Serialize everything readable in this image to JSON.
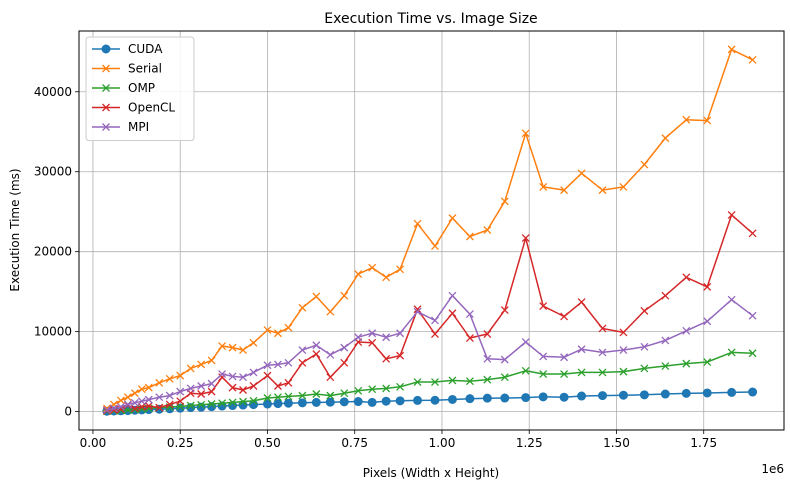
{
  "chart_data": {
    "type": "line",
    "title": "Execution Time vs. Image Size",
    "xlabel": "Pixels (Width x Height)",
    "ylabel": "Execution Time (ms)",
    "x_offset_label": "1e6",
    "xlim": [
      -40000,
      1980000
    ],
    "ylim": [
      -2300,
      47600
    ],
    "x_ticks": [
      0,
      250000,
      500000,
      750000,
      1000000,
      1250000,
      1500000,
      1750000
    ],
    "x_tick_labels": [
      "0.00",
      "0.25",
      "0.50",
      "0.75",
      "1.00",
      "1.25",
      "1.50",
      "1.75"
    ],
    "y_ticks": [
      0,
      10000,
      20000,
      30000,
      40000
    ],
    "y_tick_labels": [
      "0",
      "10000",
      "20000",
      "30000",
      "40000"
    ],
    "grid": true,
    "legend_position": "top-left",
    "x": [
      40000,
      60000,
      80000,
      100000,
      120000,
      140000,
      160000,
      190000,
      220000,
      250000,
      280000,
      310000,
      340000,
      370000,
      400000,
      430000,
      460000,
      500000,
      530000,
      560000,
      600000,
      640000,
      680000,
      720000,
      760000,
      800000,
      840000,
      880000,
      930000,
      980000,
      1030000,
      1080000,
      1130000,
      1180000,
      1240000,
      1290000,
      1350000,
      1400000,
      1460000,
      1520000,
      1580000,
      1640000,
      1700000,
      1760000,
      1830000,
      1890000
    ],
    "series": [
      {
        "name": "CUDA",
        "marker": "circle",
        "color": "#1f77b4",
        "values": [
          50,
          80,
          100,
          130,
          170,
          210,
          250,
          300,
          350,
          430,
          500,
          560,
          620,
          700,
          760,
          820,
          880,
          950,
          1000,
          1050,
          1100,
          1150,
          1180,
          1220,
          1260,
          1150,
          1300,
          1350,
          1400,
          1420,
          1520,
          1620,
          1680,
          1700,
          1750,
          1850,
          1800,
          1950,
          2000,
          2050,
          2100,
          2200,
          2280,
          2330,
          2400,
          2450
        ]
      },
      {
        "name": "Serial",
        "marker": "x",
        "color": "#ff7f0e",
        "values": [
          400,
          900,
          1400,
          1800,
          2300,
          2800,
          3000,
          3600,
          4100,
          4500,
          5400,
          5900,
          6400,
          8200,
          8000,
          7700,
          8600,
          10200,
          9800,
          10500,
          13000,
          14400,
          12500,
          14500,
          17200,
          18000,
          16800,
          17800,
          23500,
          20700,
          24200,
          21900,
          22700,
          26300,
          34800,
          28100,
          27700,
          29800,
          27700,
          28100,
          30900,
          34200,
          36500,
          36400,
          45300,
          44000
        ]
      },
      {
        "name": "OMP",
        "marker": "x",
        "color": "#2ca02c",
        "values": [
          60,
          100,
          150,
          200,
          250,
          320,
          400,
          480,
          560,
          650,
          750,
          850,
          950,
          1050,
          1150,
          1250,
          1350,
          1700,
          1800,
          1900,
          2000,
          2200,
          2000,
          2300,
          2600,
          2800,
          2900,
          3100,
          3700,
          3700,
          3900,
          3800,
          4000,
          4300,
          5100,
          4700,
          4700,
          4900,
          4900,
          5000,
          5400,
          5700,
          6000,
          6200,
          7400,
          7300
        ]
      },
      {
        "name": "OpenCL",
        "marker": "x",
        "color": "#d62728",
        "values": [
          100,
          200,
          300,
          800,
          400,
          600,
          700,
          500,
          900,
          1300,
          2300,
          2200,
          2500,
          4300,
          3000,
          2700,
          3200,
          4500,
          3200,
          3600,
          6100,
          7200,
          4300,
          6100,
          8700,
          8600,
          6600,
          7000,
          12800,
          9700,
          12300,
          9200,
          9700,
          12700,
          21700,
          13200,
          11900,
          13700,
          10400,
          9900,
          12600,
          14500,
          16800,
          15600,
          24600,
          22300
        ]
      },
      {
        "name": "MPI",
        "marker": "x",
        "color": "#9467bd",
        "values": [
          200,
          400,
          600,
          900,
          1100,
          1300,
          1500,
          1800,
          2000,
          2500,
          2900,
          3200,
          3500,
          4700,
          4400,
          4300,
          4900,
          5800,
          5900,
          6100,
          7700,
          8300,
          7100,
          8000,
          9300,
          9800,
          9300,
          9800,
          12500,
          11400,
          14500,
          12200,
          6600,
          6500,
          8700,
          6900,
          6800,
          7800,
          7400,
          7700,
          8100,
          8900,
          10100,
          11300,
          14000,
          12000
        ]
      }
    ]
  }
}
